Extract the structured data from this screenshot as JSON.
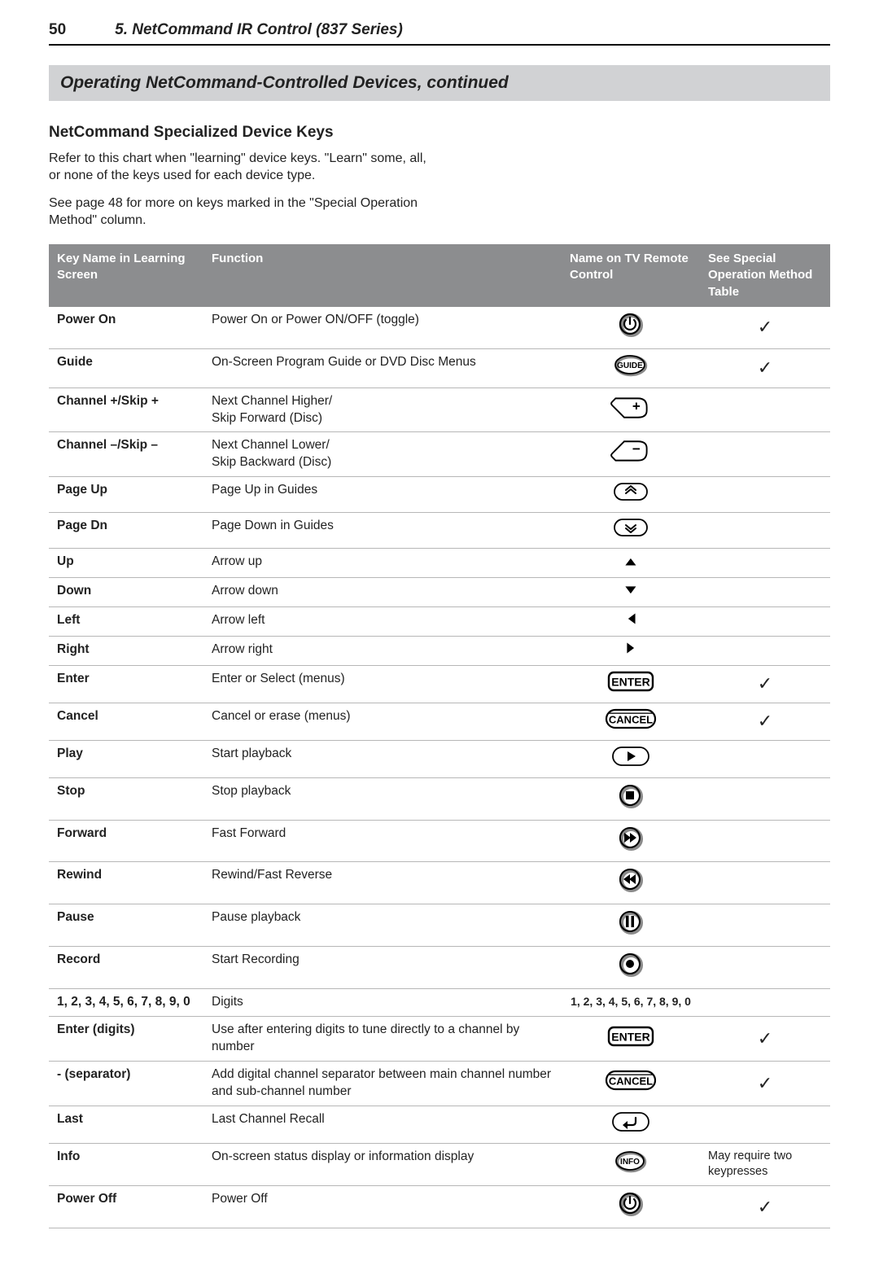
{
  "page": {
    "number": "50",
    "chapter": "5.  NetCommand IR Control (837 Series)",
    "banner": "Operating NetCommand-Controlled Devices, continued",
    "section_title": "NetCommand Specialized Device Keys",
    "intro_p1": "Refer to this chart when \"learning\" device keys.  \"Learn\" some, all, or none of the keys used for each device type.",
    "intro_p2": "See page 48 for more on keys marked in the \"Special Operation Method\" column."
  },
  "table": {
    "headers": {
      "key": "Key Name in Learning Screen",
      "func": "Function",
      "icon": "Name on TV Remote Control",
      "spec": "See Special Operation Method Table"
    },
    "rows": [
      {
        "key": "Power On",
        "func": "Power On or Power ON/OFF (toggle)",
        "icon": "power",
        "spec": "check"
      },
      {
        "key": "Guide",
        "func": "On-Screen Program Guide or DVD Disc Menus",
        "icon": "guide",
        "spec": "check"
      },
      {
        "key": "Channel +/Skip +",
        "func": "Next Channel Higher/\nSkip Forward (Disc)",
        "icon": "chan-plus",
        "spec": ""
      },
      {
        "key": "Channel –/Skip –",
        "func": "Next Channel Lower/\nSkip Backward (Disc)",
        "icon": "chan-minus",
        "spec": ""
      },
      {
        "key": "Page Up",
        "func": "Page Up in Guides",
        "icon": "page-up",
        "spec": ""
      },
      {
        "key": "Page Dn",
        "func": "Page Down in Guides",
        "icon": "page-dn",
        "spec": ""
      },
      {
        "key": "Up",
        "func": "Arrow up",
        "icon": "arrow-up",
        "spec": ""
      },
      {
        "key": "Down",
        "func": "Arrow down",
        "icon": "arrow-down",
        "spec": ""
      },
      {
        "key": "Left",
        "func": "Arrow left",
        "icon": "arrow-left",
        "spec": ""
      },
      {
        "key": "Right",
        "func": "Arrow right",
        "icon": "arrow-right",
        "spec": ""
      },
      {
        "key": "Enter",
        "func": "Enter or Select (menus)",
        "icon": "enter",
        "spec": "check"
      },
      {
        "key": "Cancel",
        "func": "Cancel or erase (menus)",
        "icon": "cancel",
        "spec": "check"
      },
      {
        "key": "Play",
        "func": "Start playback",
        "icon": "play",
        "spec": ""
      },
      {
        "key": "Stop",
        "func": "Stop playback",
        "icon": "stop",
        "spec": ""
      },
      {
        "key": "Forward",
        "func": "Fast Forward",
        "icon": "forward",
        "spec": ""
      },
      {
        "key": "Rewind",
        "func": "Rewind/Fast Reverse",
        "icon": "rewind",
        "spec": ""
      },
      {
        "key": "Pause",
        "func": "Pause playback",
        "icon": "pause",
        "spec": ""
      },
      {
        "key": "Record",
        "func": "Start Recording",
        "icon": "record",
        "spec": ""
      },
      {
        "key": "1, 2, 3, 4, 5, 6, 7, 8, 9, 0",
        "func": "Digits",
        "icon": "digits",
        "spec": ""
      },
      {
        "key": "Enter (digits)",
        "func": "Use after entering digits to tune directly to a channel by number",
        "icon": "enter",
        "spec": "check"
      },
      {
        "key": "- (separator)",
        "func": "Add digital channel separator between main channel number and sub-channel number",
        "icon": "cancel",
        "spec": "check"
      },
      {
        "key": "Last",
        "func": "Last Channel Recall",
        "icon": "last",
        "spec": ""
      },
      {
        "key": "Info",
        "func": "On-screen status display or information display",
        "icon": "info",
        "spec": "text",
        "spec_text": "May require two keypresses"
      },
      {
        "key": "Power Off",
        "func": "Power Off",
        "icon": "power",
        "spec": "check"
      }
    ]
  },
  "icons": {
    "digits_text": "1, 2, 3, 4, 5, 6, 7, 8, 9, 0",
    "colors": {
      "stroke": "#000000",
      "fill_none": "none",
      "shadow": "#8a8a8a"
    }
  }
}
